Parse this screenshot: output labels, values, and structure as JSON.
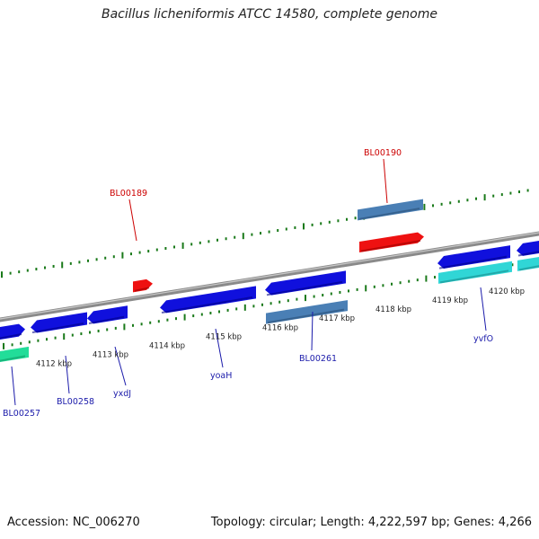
{
  "title": "Bacillus licheniformis ATCC 14580, complete genome",
  "footer": {
    "accession": "Accession: NC_006270",
    "summary": "Topology: circular; Length: 4,222,597 bp; Genes: 4,266"
  },
  "colors": {
    "backbone": "#8a8a8a",
    "forward_cds": "#1010dd",
    "reverse_cds": "#4a7fb5",
    "forward_rna": "#ee1111",
    "reverse_rna": "#30d6d6",
    "other_feature": "#22dd99",
    "ticks": "#1a7a1a",
    "gene_label": "#1a1aaa",
    "rna_label": "#cc0000"
  },
  "tick_labels": [
    "4112 kbp",
    "4113 kbp",
    "4114 kbp",
    "4115 kbp",
    "4116 kbp",
    "4117 kbp",
    "4118 kbp",
    "4119 kbp",
    "4120 kbp"
  ],
  "gene_labels": [
    {
      "text": "BL00257",
      "kind": "gene"
    },
    {
      "text": "BL00258",
      "kind": "gene"
    },
    {
      "text": "yxdJ",
      "kind": "gene"
    },
    {
      "text": "yoaH",
      "kind": "gene"
    },
    {
      "text": "BL00261",
      "kind": "gene"
    },
    {
      "text": "yvfO",
      "kind": "gene"
    },
    {
      "text": "BL00189",
      "kind": "rna"
    },
    {
      "text": "BL00190",
      "kind": "rna"
    }
  ]
}
